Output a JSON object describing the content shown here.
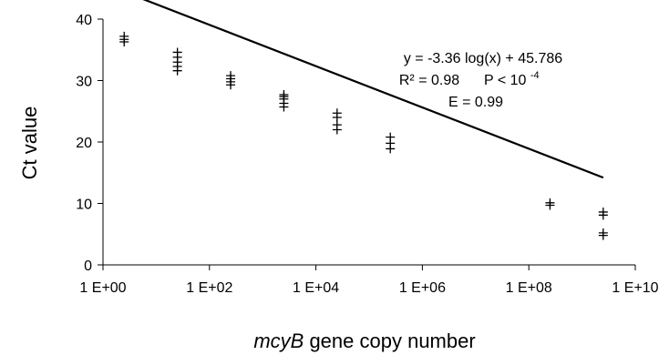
{
  "chart_data": {
    "type": "scatter",
    "title": "",
    "xlabel_italic": "mcyB",
    "xlabel_rest": " gene copy number",
    "ylabel": "Ct  value",
    "xscale": "log",
    "xlim": [
      1,
      10000000000
    ],
    "ylim": [
      0,
      40
    ],
    "grid": false,
    "xticks": [
      {
        "value": 1,
        "label": "1 E+00"
      },
      {
        "value": 100,
        "label": "1 E+02"
      },
      {
        "value": 10000,
        "label": "1 E+04"
      },
      {
        "value": 1000000,
        "label": "1 E+06"
      },
      {
        "value": 100000000,
        "label": "1 E+08"
      },
      {
        "value": 10000000000,
        "label": "1 E+10"
      }
    ],
    "yticks": [
      {
        "value": 0,
        "label": "0"
      },
      {
        "value": 10,
        "label": "10"
      },
      {
        "value": 20,
        "label": "20"
      },
      {
        "value": 30,
        "label": "30"
      },
      {
        "value": 40,
        "label": "40"
      }
    ],
    "points": [
      {
        "x": 2.5,
        "y": 37.2
      },
      {
        "x": 2.5,
        "y": 36.7
      },
      {
        "x": 2.5,
        "y": 36.3
      },
      {
        "x": 25,
        "y": 34.6
      },
      {
        "x": 25,
        "y": 33.8
      },
      {
        "x": 25,
        "y": 33.0
      },
      {
        "x": 25,
        "y": 32.3
      },
      {
        "x": 25,
        "y": 31.6
      },
      {
        "x": 250,
        "y": 30.8
      },
      {
        "x": 250,
        "y": 30.3
      },
      {
        "x": 250,
        "y": 29.8
      },
      {
        "x": 250,
        "y": 29.3
      },
      {
        "x": 2500,
        "y": 27.7
      },
      {
        "x": 2500,
        "y": 27.4
      },
      {
        "x": 2500,
        "y": 27.0
      },
      {
        "x": 2500,
        "y": 26.3
      },
      {
        "x": 2500,
        "y": 25.7
      },
      {
        "x": 25000,
        "y": 24.7
      },
      {
        "x": 25000,
        "y": 24.0
      },
      {
        "x": 25000,
        "y": 22.8
      },
      {
        "x": 25000,
        "y": 22.0
      },
      {
        "x": 250000,
        "y": 20.8
      },
      {
        "x": 250000,
        "y": 19.8
      },
      {
        "x": 250000,
        "y": 18.9
      },
      {
        "x": 250000000,
        "y": 10.1
      },
      {
        "x": 250000000,
        "y": 9.7
      },
      {
        "x": 2500000000,
        "y": 8.6
      },
      {
        "x": 2500000000,
        "y": 8.1
      },
      {
        "x": 2500000000,
        "y": 5.2
      },
      {
        "x": 2500000000,
        "y": 4.8
      }
    ],
    "fit": {
      "slope": -3.36,
      "intercept": 45.786,
      "x_range": [
        2.5,
        2500000000
      ],
      "equation": "y = -3.36 log(x) + 45.786",
      "r2_label": "R² = 0.98",
      "p_label_base": "P < 10",
      "p_label_exp": "-4",
      "efficiency_label": "E = 0.99"
    }
  }
}
